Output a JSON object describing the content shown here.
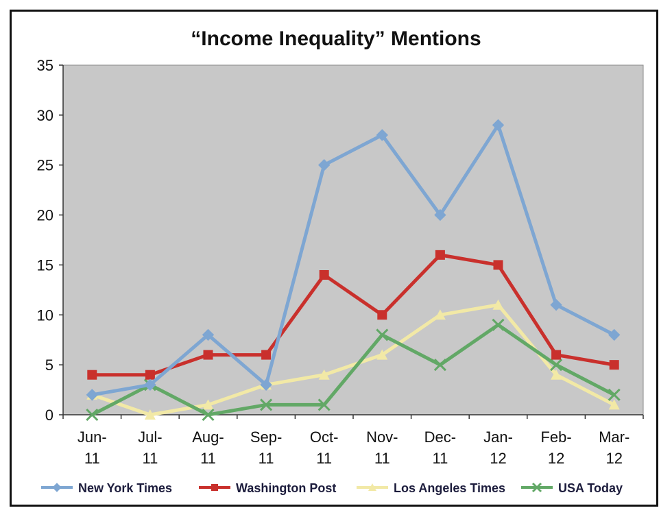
{
  "chart_data": {
    "type": "line",
    "title": "“Income Inequality” Mentions",
    "xlabel": "",
    "ylabel": "",
    "categories": [
      [
        "Jun-",
        "11"
      ],
      [
        "Jul-",
        "11"
      ],
      [
        "Aug-",
        "11"
      ],
      [
        "Sep-",
        "11"
      ],
      [
        "Oct-",
        "11"
      ],
      [
        "Nov-",
        "11"
      ],
      [
        "Dec-",
        "11"
      ],
      [
        "Jan-",
        "12"
      ],
      [
        "Feb-",
        "12"
      ],
      [
        "Mar-",
        "12"
      ]
    ],
    "ylim": [
      0,
      35
    ],
    "yticks": [
      "0",
      "5",
      "10",
      "15",
      "20",
      "25",
      "30",
      "35"
    ],
    "grid": false,
    "legend_position": "bottom",
    "series": [
      {
        "name": "New York Times",
        "color": "#7ea6d2",
        "marker": "diamond",
        "values": [
          2,
          3,
          8,
          3,
          25,
          28,
          20,
          29,
          11,
          8
        ]
      },
      {
        "name": "Washington Post",
        "color": "#c9302c",
        "marker": "square",
        "values": [
          4,
          4,
          6,
          6,
          14,
          10,
          16,
          15,
          6,
          5
        ]
      },
      {
        "name": "Los Angeles Times",
        "color": "#f2e9a6",
        "marker": "triangle",
        "values": [
          2,
          0,
          1,
          3,
          4,
          6,
          10,
          11,
          4,
          1
        ]
      },
      {
        "name": "USA Today",
        "color": "#62a866",
        "marker": "x",
        "values": [
          0,
          3,
          0,
          1,
          1,
          8,
          5,
          9,
          5,
          2
        ]
      }
    ]
  }
}
